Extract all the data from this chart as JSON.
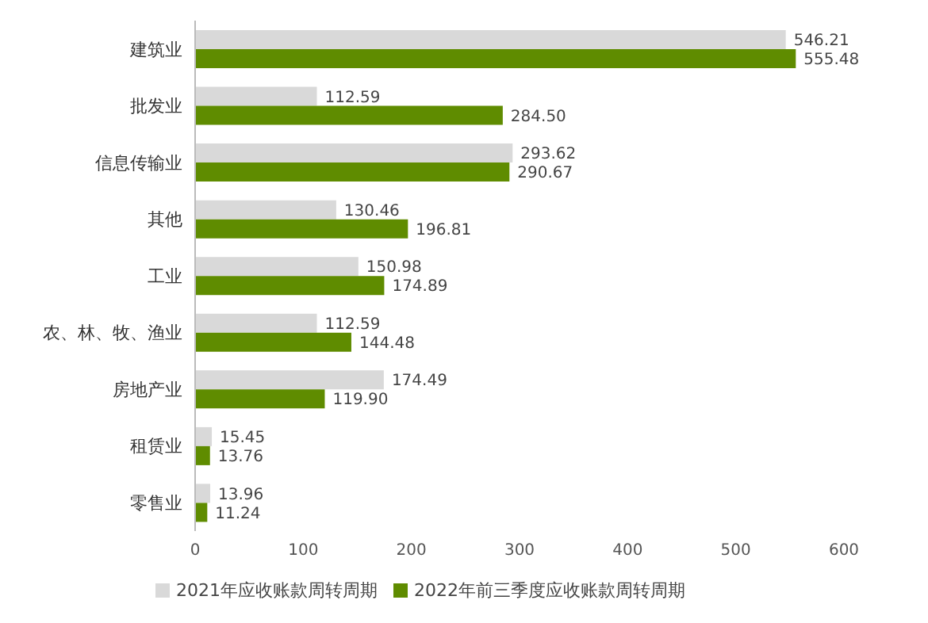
{
  "chart_data": {
    "type": "bar",
    "orientation": "horizontal",
    "categories": [
      "建筑业",
      "批发业",
      "信息传输业",
      "其他",
      "工业",
      "农、林、牧、渔业",
      "房地产业",
      "租赁业",
      "零售业"
    ],
    "series": [
      {
        "name": "2021年应收账款周转周期",
        "color": "#d9d9d9",
        "values": [
          546.21,
          112.59,
          293.62,
          130.46,
          150.98,
          112.59,
          174.49,
          15.45,
          13.96
        ],
        "value_labels": [
          "546.21",
          "112.59",
          "293.62",
          "130.46",
          "150.98",
          "112.59",
          "174.49",
          "15.45",
          "13.96"
        ]
      },
      {
        "name": "2022年前三季度应收账款周转周期",
        "color": "#5f8c00",
        "values": [
          555.48,
          284.5,
          290.67,
          196.81,
          174.89,
          144.48,
          119.9,
          13.76,
          11.24
        ],
        "value_labels": [
          "555.48",
          "284.50",
          "290.67",
          "196.81",
          "174.89",
          "144.48",
          "119.90",
          "13.76",
          "11.24"
        ]
      }
    ],
    "xlim": [
      0,
      600
    ],
    "xticks": [
      0,
      100,
      200,
      300,
      400,
      500,
      600
    ],
    "legend": "bottom"
  }
}
